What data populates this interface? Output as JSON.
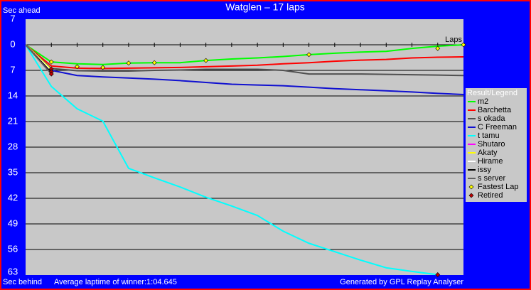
{
  "chart_data": {
    "type": "line",
    "title": "Watglen – 17 laps",
    "y_label_top": "Sec ahead",
    "y_label_bottom": "Sec behind",
    "x_label": "Laps",
    "footer_left": "Average laptime of winner:1:04.645",
    "footer_right": "Generated by GPL Replay Analyser",
    "legend_title": "Result/Legend",
    "x": [
      0,
      1,
      2,
      3,
      4,
      5,
      6,
      7,
      8,
      9,
      10,
      11,
      12,
      13,
      14,
      15,
      16,
      17
    ],
    "xlim": [
      0,
      17
    ],
    "ylim": [
      -7,
      63
    ],
    "yticks": [
      {
        "value": -7,
        "label": "7"
      },
      0,
      7,
      14,
      21,
      28,
      35,
      42,
      49,
      56,
      63
    ],
    "grid": true,
    "series": [
      {
        "name": "m2",
        "color": "#00ff00",
        "values": [
          0,
          4.7,
          5.2,
          5.4,
          5.0,
          4.9,
          4.9,
          4.3,
          3.9,
          3.6,
          3.2,
          2.7,
          2.3,
          2.0,
          1.8,
          1.0,
          0.4,
          0
        ]
      },
      {
        "name": "Barchetta",
        "color": "#ff0000",
        "values": [
          0,
          5.8,
          6.4,
          6.5,
          6.4,
          6.3,
          6.2,
          6.0,
          5.8,
          5.6,
          5.2,
          4.9,
          4.5,
          4.2,
          4.0,
          3.6,
          3.4,
          3.3
        ]
      },
      {
        "name": "s okada",
        "color": "#505050",
        "values": [
          0,
          6.5,
          7.1,
          7.2,
          7.2,
          7.0,
          6.9,
          6.7,
          6.7,
          6.7,
          7.0,
          8.0,
          8.0,
          8.0,
          8.1,
          8.2,
          8.3,
          8.4
        ]
      },
      {
        "name": "C Freeman",
        "color": "#1010d0",
        "values": [
          0,
          7.0,
          8.4,
          8.8,
          9.1,
          9.4,
          9.8,
          10.3,
          10.8,
          11.0,
          11.2,
          11.6,
          12.0,
          12.3,
          12.6,
          12.9,
          13.3,
          13.6
        ]
      },
      {
        "name": "t tamu",
        "color": "#00ffff",
        "values": [
          0,
          11.4,
          17.5,
          20.9,
          33.8,
          36.4,
          38.9,
          41.7,
          44.1,
          46.7,
          51.0,
          54.3,
          56.6,
          58.9,
          61.0,
          62.0,
          62.9,
          null
        ]
      },
      {
        "name": "Shutaro",
        "color": "#ff00ff",
        "values": [
          0,
          7.4,
          null,
          null,
          null,
          null,
          null,
          null,
          null,
          null,
          null,
          null,
          null,
          null,
          null,
          null,
          null,
          null
        ]
      },
      {
        "name": "Akaty",
        "color": "#ffff00",
        "values": [
          0,
          6.8,
          null,
          null,
          null,
          null,
          null,
          null,
          null,
          null,
          null,
          null,
          null,
          null,
          null,
          null,
          null,
          null
        ]
      },
      {
        "name": "Hirame",
        "color": "#ffffff",
        "values": [
          0,
          7.2,
          null,
          null,
          null,
          null,
          null,
          null,
          null,
          null,
          null,
          null,
          null,
          null,
          null,
          null,
          null,
          null
        ]
      },
      {
        "name": "issy",
        "color": "#000000",
        "values": [
          0,
          7.6,
          null,
          null,
          null,
          null,
          null,
          null,
          null,
          null,
          null,
          null,
          null,
          null,
          null,
          null,
          null,
          null
        ]
      },
      {
        "name": "s server",
        "color": "#606060",
        "values": [
          0,
          8.0,
          null,
          null,
          null,
          null,
          null,
          null,
          null,
          null,
          null,
          null,
          null,
          null,
          null,
          null,
          null,
          null
        ]
      }
    ],
    "fastest_lap": {
      "name": "Fastest Lap",
      "color": "#ffff00",
      "x": [
        1,
        2,
        3,
        4,
        5,
        7,
        11,
        16,
        17
      ],
      "values": [
        4.7,
        6.0,
        6.2,
        5.0,
        4.9,
        4.3,
        2.7,
        1.0,
        0
      ]
    },
    "retired": {
      "name": "Retired",
      "color": "#c00000",
      "x": [
        1,
        1,
        1,
        16
      ],
      "values": [
        6.6,
        7.4,
        8.0,
        62.9
      ]
    }
  }
}
